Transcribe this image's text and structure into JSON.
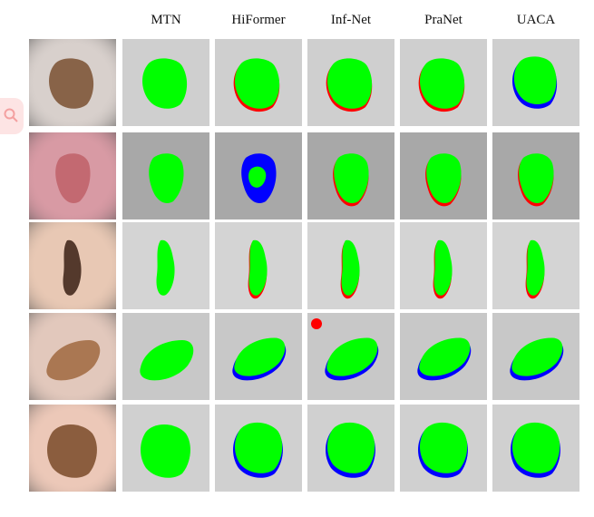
{
  "figure": {
    "column_headers": [
      "MTN",
      "HiFormer",
      "Inf-Net",
      "PraNet",
      "UACA"
    ],
    "legend_colors": {
      "agreement": "#00ff00",
      "false_positive": "#ff0000",
      "false_negative": "#0000ff"
    },
    "rows": [
      {
        "skin": "#d8d0cc",
        "lesion": "#7a5030",
        "bg": "#cfcfcf"
      },
      {
        "skin": "#d89aa4",
        "lesion": "#c06068",
        "bg": "#a8a8a8"
      },
      {
        "skin": "#e8c8b4",
        "lesion": "#3a2014",
        "bg": "#d4d4d4"
      },
      {
        "skin": "#e2c8bc",
        "lesion": "#a06840",
        "bg": "#c8c8c8"
      },
      {
        "skin": "#ecc8b8",
        "lesion": "#7a4a28",
        "bg": "#d0d0d0"
      }
    ]
  },
  "side_widget": {
    "icon": "search-icon"
  }
}
